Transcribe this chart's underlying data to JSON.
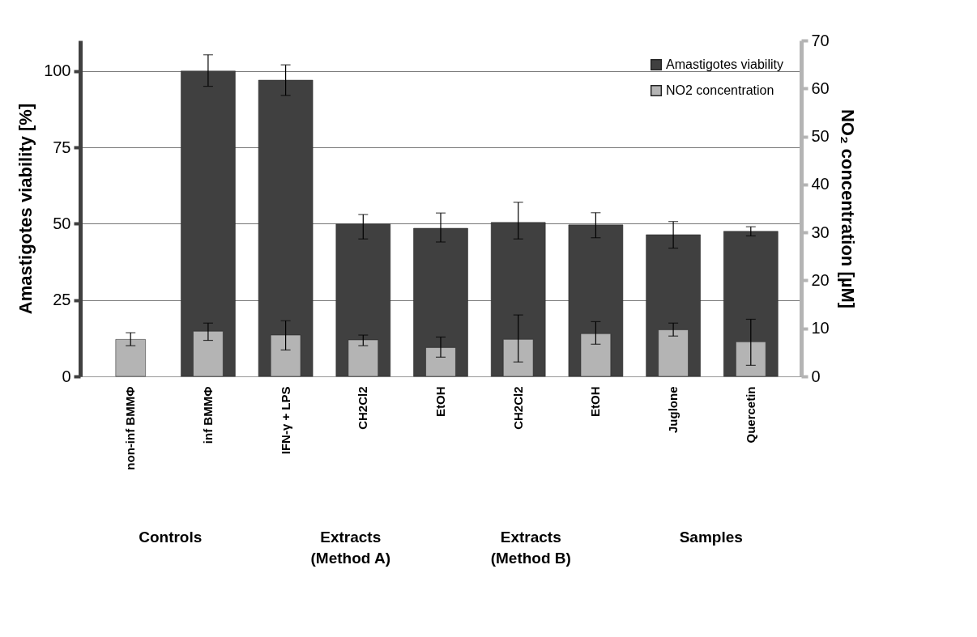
{
  "chart_data": {
    "type": "bar",
    "categories": [
      "non-inf BMMΦ",
      "inf BMMΦ",
      "IFN-γ + LPS",
      "CH2Cl2",
      "EtOH",
      "CH2Cl2",
      "EtOH",
      "Juglone",
      "Quercetin"
    ],
    "series": [
      {
        "name": "Amastigotes viability",
        "color": "#404040",
        "values": [
          null,
          100,
          97,
          49.9,
          48.5,
          50.4,
          49.6,
          46.4,
          47.5
        ],
        "errors": [
          null,
          [
            95,
            105.3
          ],
          [
            92,
            102
          ],
          [
            45,
            53
          ],
          [
            44,
            53.5
          ],
          [
            45,
            57
          ],
          [
            45.4,
            53.6
          ],
          [
            42,
            50.7
          ],
          [
            46,
            49
          ]
        ]
      },
      {
        "name": "NO2 concentration",
        "color": "#b4b4b4",
        "axis": "y2",
        "values": [
          7.7,
          9.4,
          8.6,
          7.6,
          6.0,
          7.7,
          8.9,
          9.7,
          7.2
        ],
        "errors": [
          [
            6.4,
            9.1
          ],
          [
            7.5,
            11.1
          ],
          [
            5.5,
            11.6
          ],
          [
            6.4,
            8.6
          ],
          [
            4.0,
            8.2
          ],
          [
            3.0,
            12.8
          ],
          [
            6.7,
            11.4
          ],
          [
            8.4,
            11.1
          ],
          [
            2.3,
            11.9
          ]
        ]
      }
    ],
    "ylabel": "Amastigotes viability [%]",
    "y2label": "NO₂ concentration [µM]",
    "ylim": [
      0,
      110
    ],
    "yticks": [
      0,
      25,
      50,
      75,
      100
    ],
    "y2lim": [
      0,
      70
    ],
    "y2ticks": [
      0,
      10,
      20,
      30,
      40,
      50,
      60,
      70
    ],
    "annotations": [
      "Controls",
      "Extracts\n(Method A)",
      "Extracts\n(Method B)",
      "Samples"
    ],
    "grid": "y",
    "legend": "top right"
  }
}
